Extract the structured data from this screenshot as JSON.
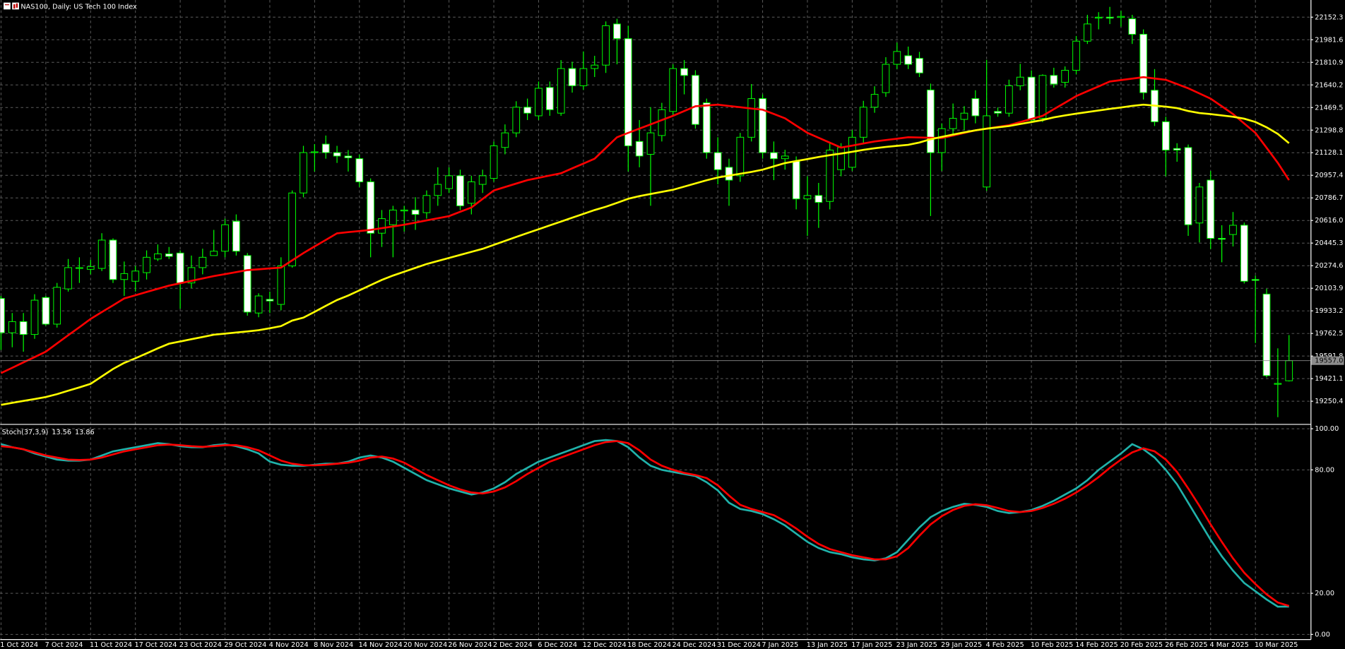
{
  "header": {
    "title": "NAS100, Daily: US Tech 100 Index"
  },
  "chart_data": [
    {
      "type": "candlestick",
      "categories": [
        "1 Oct 2024",
        null,
        null,
        null,
        "7 Oct 2024",
        null,
        null,
        null,
        "11 Oct 2024",
        null,
        null,
        null,
        "17 Oct 2024",
        null,
        null,
        null,
        "23 Oct 2024",
        null,
        null,
        null,
        "29 Oct 2024",
        null,
        null,
        null,
        "4 Nov 2024",
        null,
        null,
        null,
        "8 Nov 2024",
        null,
        null,
        null,
        "14 Nov 2024",
        null,
        null,
        null,
        "20 Nov 2024",
        null,
        null,
        null,
        "26 Nov 2024",
        null,
        null,
        null,
        "2 Dec 2024",
        null,
        null,
        null,
        "6 Dec 2024",
        null,
        null,
        null,
        "12 Dec 2024",
        null,
        null,
        null,
        "18 Dec 2024",
        null,
        null,
        null,
        "24 Dec 2024",
        null,
        null,
        null,
        "31 Dec 2024",
        null,
        null,
        null,
        "7 Jan 2025",
        null,
        null,
        null,
        "13 Jan 2025",
        null,
        null,
        null,
        "17 Jan 2025",
        null,
        null,
        null,
        "23 Jan 2025",
        null,
        null,
        null,
        "29 Jan 2025",
        null,
        null,
        null,
        "4 Feb 2025",
        null,
        null,
        null,
        "10 Feb 2025",
        null,
        null,
        null,
        "14 Feb 2025",
        null,
        null,
        null,
        "20 Feb 2025",
        null,
        null,
        null,
        "26 Feb 2025",
        null,
        null,
        null,
        "4 Mar 2025",
        null,
        null,
        null,
        "10 Mar 2025",
        null,
        null,
        null
      ],
      "open": [
        20027,
        19768,
        19852,
        19755,
        20034,
        19833,
        20099,
        20254,
        20247,
        20254,
        20468,
        20170,
        20157,
        20222,
        20325,
        20364,
        20370,
        20144,
        20260,
        20351,
        20384,
        20610,
        20351,
        19917,
        20020,
        19982,
        20273,
        20824,
        21129,
        21193,
        21129,
        21103,
        21083,
        20908,
        20520,
        20584,
        20688,
        20695,
        20675,
        20805,
        20857,
        20954,
        20746,
        20889,
        20934,
        21168,
        21278,
        21472,
        21407,
        21621,
        21427,
        21764,
        21634,
        21764,
        21790,
        22101,
        21990,
        21213,
        21116,
        21258,
        21440,
        21764,
        21712,
        21505,
        21129,
        21018,
        20954,
        21245,
        21537,
        21129,
        21083,
        21064,
        20779,
        20805,
        20760,
        21000,
        21018,
        21245,
        21472,
        21582,
        21796,
        21861,
        21841,
        21602,
        21129,
        21310,
        21380,
        21537,
        20869,
        21440,
        21427,
        21634,
        21699,
        21388,
        21712,
        21660,
        21751,
        21971,
        22145,
        22152,
        22150,
        22140,
        22023,
        21600,
        21362,
        21160,
        21167,
        20597,
        20921,
        20481,
        20510,
        20580,
        20170,
        20060,
        19379,
        19405
      ],
      "high": [
        20046,
        19917,
        19917,
        20059,
        20046,
        20144,
        20325,
        20338,
        20319,
        20520,
        20481,
        20306,
        20273,
        20390,
        20435,
        20416,
        20390,
        20351,
        20403,
        20545,
        20630,
        20662,
        20370,
        20066,
        20079,
        20338,
        20843,
        21180,
        21193,
        21258,
        21180,
        21148,
        21116,
        20934,
        20695,
        20727,
        20727,
        20792,
        20843,
        21018,
        21018,
        21000,
        20954,
        21000,
        21213,
        21342,
        21517,
        21537,
        21666,
        21666,
        21828,
        21815,
        21893,
        21860,
        22120,
        22140,
        22088,
        21375,
        21472,
        21505,
        21796,
        21828,
        21751,
        21537,
        21245,
        21083,
        21278,
        21647,
        21569,
        21213,
        21150,
        21100,
        20950,
        20900,
        21200,
        21200,
        21300,
        21520,
        21630,
        21850,
        21960,
        21930,
        21890,
        21650,
        21350,
        21500,
        21480,
        21600,
        21830,
        21470,
        21680,
        21800,
        21750,
        21720,
        21770,
        21780,
        22010,
        22170,
        22190,
        22230,
        22200,
        22170,
        22060,
        21760,
        21400,
        21200,
        21190,
        20900,
        20990,
        20580,
        20680,
        20600,
        20200,
        20100,
        19650,
        19750
      ],
      "low": [
        19638,
        19658,
        19625,
        19722,
        19820,
        19807,
        20079,
        20144,
        20209,
        20234,
        20144,
        20046,
        20079,
        20170,
        20310,
        20325,
        19949,
        20105,
        20209,
        20351,
        20338,
        20351,
        19897,
        19885,
        19917,
        19937,
        20260,
        20791,
        20986,
        21083,
        21051,
        20986,
        20869,
        20338,
        20416,
        20338,
        20532,
        20545,
        20630,
        20727,
        20824,
        20695,
        20662,
        20824,
        20908,
        21116,
        21245,
        21375,
        21375,
        21407,
        21407,
        21582,
        21602,
        21700,
        21731,
        21796,
        20986,
        21018,
        20727,
        21213,
        21407,
        21569,
        21310,
        21083,
        20889,
        20727,
        20908,
        21213,
        21083,
        20921,
        21000,
        20700,
        20500,
        20560,
        20700,
        20950,
        20990,
        21200,
        21430,
        21550,
        21760,
        21760,
        21700,
        20650,
        20990,
        21250,
        21300,
        21350,
        20840,
        21400,
        21400,
        21600,
        21360,
        21360,
        21620,
        21620,
        21720,
        21950,
        22060,
        22100,
        22080,
        21950,
        21530,
        21330,
        20950,
        21060,
        20500,
        20450,
        20400,
        20300,
        20420,
        20140,
        19690,
        19430,
        19130,
        19400
      ],
      "close": [
        19768,
        19852,
        19755,
        20014,
        19833,
        20111,
        20260,
        20260,
        20267,
        20468,
        20170,
        20215,
        20234,
        20338,
        20364,
        20345,
        20144,
        20260,
        20338,
        20384,
        20584,
        20384,
        19924,
        20046,
        20008,
        20273,
        20824,
        21129,
        21135,
        21129,
        21103,
        21090,
        20908,
        20520,
        20630,
        20695,
        20695,
        20662,
        20805,
        20889,
        20954,
        20727,
        20908,
        20954,
        21180,
        21278,
        21472,
        21427,
        21615,
        21453,
        21764,
        21634,
        21764,
        21790,
        22088,
        21990,
        21180,
        21103,
        21278,
        21453,
        21764,
        21712,
        21342,
        21129,
        21000,
        20921,
        21245,
        21537,
        21129,
        21083,
        21103,
        20779,
        20805,
        20753,
        21148,
        21167,
        21245,
        21472,
        21569,
        21796,
        21893,
        21796,
        21731,
        21129,
        21310,
        21388,
        21427,
        21407,
        21407,
        21427,
        21634,
        21699,
        21375,
        21712,
        21647,
        21751,
        21971,
        22101,
        22152,
        22145,
        22158,
        22023,
        21582,
        21362,
        21148,
        21148,
        20584,
        20869,
        20481,
        20475,
        20580,
        20157,
        20164,
        19444,
        19385,
        19557
      ],
      "up_color": "#000000",
      "down_color": "#ffffff",
      "wick_color": "#00ff00",
      "series": [
        {
          "color": "#ff0000",
          "values": [
            19463,
            19503,
            19544,
            19584,
            19625,
            19687,
            19749,
            19810,
            19872,
            19924,
            19975,
            20027,
            20051,
            20076,
            20100,
            20124,
            20142,
            20160,
            20178,
            20196,
            20211,
            20226,
            20241,
            20247,
            20254,
            20260,
            20315,
            20370,
            20420,
            20469,
            20519,
            20528,
            20536,
            20545,
            20558,
            20571,
            20584,
            20600,
            20617,
            20633,
            20649,
            20682,
            20714,
            20779,
            20843,
            20869,
            20895,
            20921,
            20938,
            20956,
            20973,
            21010,
            21046,
            21083,
            21164,
            21245,
            21278,
            21310,
            21342,
            21375,
            21407,
            21443,
            21479,
            21485,
            21491,
            21481,
            21472,
            21462,
            21453,
            21421,
            21388,
            21333,
            21278,
            21241,
            21204,
            21167,
            21182,
            21198,
            21213,
            21224,
            21234,
            21245,
            21243,
            21241,
            21239,
            21258,
            21278,
            21297,
            21310,
            21323,
            21336,
            21360,
            21383,
            21407,
            21457,
            21506,
            21556,
            21593,
            21629,
            21666,
            21677,
            21688,
            21699,
            21689,
            21679,
            21647,
            21615,
            21576,
            21537,
            21479,
            21420,
            21349,
            21278,
            21165,
            21051,
            20921
          ]
        },
        {
          "color": "#ffff00",
          "values": [
            19223,
            19238,
            19253,
            19267,
            19282,
            19304,
            19330,
            19355,
            19382,
            19438,
            19494,
            19540,
            19575,
            19612,
            19650,
            19685,
            19702,
            19719,
            19736,
            19753,
            19761,
            19770,
            19778,
            19787,
            19802,
            19818,
            19860,
            19882,
            19926,
            19971,
            20015,
            20049,
            20088,
            20128,
            20167,
            20200,
            20229,
            20258,
            20287,
            20310,
            20333,
            20356,
            20379,
            20402,
            20432,
            20462,
            20492,
            20521,
            20550,
            20579,
            20608,
            20637,
            20666,
            20695,
            20720,
            20749,
            20780,
            20800,
            20816,
            20832,
            20848,
            20872,
            20896,
            20920,
            20941,
            20955,
            20969,
            20983,
            21000,
            21025,
            21050,
            21065,
            21080,
            21096,
            21110,
            21122,
            21135,
            21150,
            21162,
            21172,
            21180,
            21188,
            21205,
            21230,
            21248,
            21265,
            21282,
            21297,
            21310,
            21320,
            21330,
            21345,
            21360,
            21375,
            21395,
            21410,
            21423,
            21435,
            21447,
            21459,
            21470,
            21482,
            21491,
            21484,
            21476,
            21465,
            21443,
            21428,
            21420,
            21410,
            21400,
            21385,
            21360,
            21320,
            21270,
            21200
          ]
        }
      ],
      "ylim": [
        19082,
        22281.9
      ],
      "yticks": [
        22152.3,
        21981.6,
        21810.9,
        21640.2,
        21469.5,
        21298.8,
        21128.1,
        20957.4,
        20786.7,
        {
          "value": 20616,
          "label": "20616.0"
        },
        20445.3,
        20274.6,
        20103.9,
        19933.2,
        19762.5,
        19591.8,
        19421.1,
        19250.4
      ],
      "last_price": {
        "value": 19557,
        "label": "19557.0"
      },
      "grid": true
    },
    {
      "type": "line",
      "title": "Stoch(37,3,9)",
      "series": [
        {
          "color": "#20b2aa",
          "values": [
            92.5,
            91,
            90,
            88,
            86.5,
            85,
            84.5,
            84.5,
            85,
            87,
            89,
            90,
            91,
            92,
            93,
            92.5,
            91.5,
            91,
            91,
            92,
            92.5,
            91.5,
            90,
            88,
            84,
            82.5,
            82,
            82,
            82.5,
            83,
            83,
            84,
            86,
            87,
            86,
            84,
            81,
            78,
            75,
            73,
            71,
            69.5,
            68,
            69,
            71,
            74,
            78,
            81,
            84,
            86,
            88,
            90,
            92,
            94,
            94.5,
            94,
            91,
            86,
            82,
            80,
            79,
            78,
            77,
            74,
            70,
            64,
            61,
            60,
            58.5,
            56,
            53,
            49,
            45,
            42,
            40,
            39,
            37.5,
            36.5,
            36,
            37,
            40,
            46,
            52,
            57,
            60,
            62,
            63.5,
            63,
            62,
            60,
            59,
            59.5,
            60.5,
            62.5,
            65,
            68,
            71,
            75,
            80,
            84,
            88,
            92.5,
            90,
            86,
            80,
            73,
            64,
            55,
            46,
            38,
            31,
            25,
            21,
            17,
            13.5,
            13.56
          ]
        },
        {
          "color": "#ff0000",
          "values": [
            91.5,
            91,
            90,
            88.5,
            87,
            86,
            85,
            84.8,
            85,
            86,
            87.5,
            89,
            90,
            91,
            92,
            92.3,
            92,
            91.5,
            91.2,
            91.5,
            92,
            92,
            91,
            89.5,
            87,
            84.5,
            83,
            82.3,
            82.2,
            82.5,
            83,
            83.5,
            84.5,
            86,
            86.5,
            85.5,
            83.5,
            80.5,
            77.5,
            75,
            72.5,
            70.5,
            69,
            68.5,
            69.5,
            71.5,
            74.5,
            78,
            81,
            84,
            86,
            88,
            90,
            92,
            93.5,
            94,
            93,
            89.5,
            85,
            82,
            80,
            78.5,
            77.5,
            76,
            72.5,
            67.5,
            63,
            61,
            59.5,
            58,
            55,
            51.5,
            47.5,
            44,
            41.5,
            40,
            38.5,
            37.5,
            36.5,
            36.5,
            38,
            42,
            48,
            53.5,
            57.5,
            60.5,
            62.5,
            63.3,
            62.8,
            61.5,
            60,
            59.5,
            60,
            61.5,
            63.5,
            66,
            69,
            72.5,
            76.5,
            81,
            85,
            88.5,
            90.5,
            89,
            85,
            79,
            71,
            62.5,
            53.5,
            45,
            37,
            30,
            24.5,
            19.5,
            15.5,
            13.86
          ]
        }
      ],
      "ylim": [
        -2.5,
        101.7
      ],
      "yticks": [
        {
          "value": 100,
          "label": "100.00"
        },
        {
          "value": 80,
          "label": "80.00"
        },
        {
          "value": 20,
          "label": "20.00"
        },
        {
          "value": 0,
          "label": "0.00"
        }
      ],
      "grid": true
    }
  ]
}
